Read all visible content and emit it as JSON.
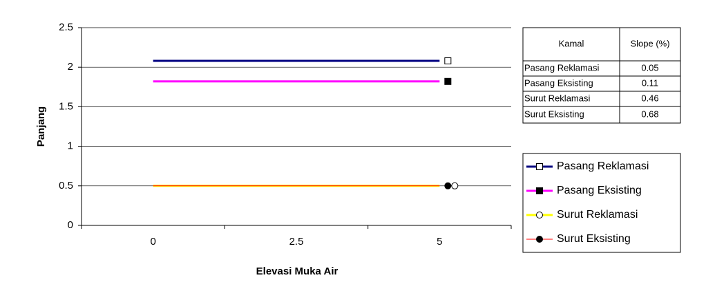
{
  "chart_data": {
    "type": "line",
    "x_label": "Elevasi Muka Air",
    "y_label": "Panjang",
    "categories": [
      "0",
      "2.5",
      "5"
    ],
    "ylim": [
      0,
      2.5
    ],
    "yticks": [
      0,
      0.5,
      1,
      1.5,
      2,
      2.5
    ],
    "grid": true,
    "series": [
      {
        "name": "Pasang Reklamasi",
        "color": "#000080",
        "marker": "square-open",
        "values": [
          2.08,
          2.08,
          2.08
        ]
      },
      {
        "name": "Pasang Eksisting",
        "color": "#ff00ff",
        "marker": "square-filled",
        "values": [
          1.82,
          1.82,
          1.82
        ]
      },
      {
        "name": "Surut Reklamasi",
        "color": "#ffff00",
        "marker": "circle-open",
        "values": [
          0.5,
          0.5,
          0.5
        ]
      },
      {
        "name": "Surut Eksisting",
        "color": "#ff0000",
        "marker": "circle-filled",
        "values": [
          0.5,
          0.5,
          0.5
        ]
      }
    ]
  },
  "table": {
    "header": [
      "Kamal",
      "Slope (%)"
    ],
    "rows": [
      [
        "Pasang Reklamasi",
        0.05
      ],
      [
        "Pasang Eksisting",
        0.11
      ],
      [
        "Surut Reklamasi",
        0.46
      ],
      [
        "Surut Eksisting",
        0.68
      ]
    ]
  }
}
